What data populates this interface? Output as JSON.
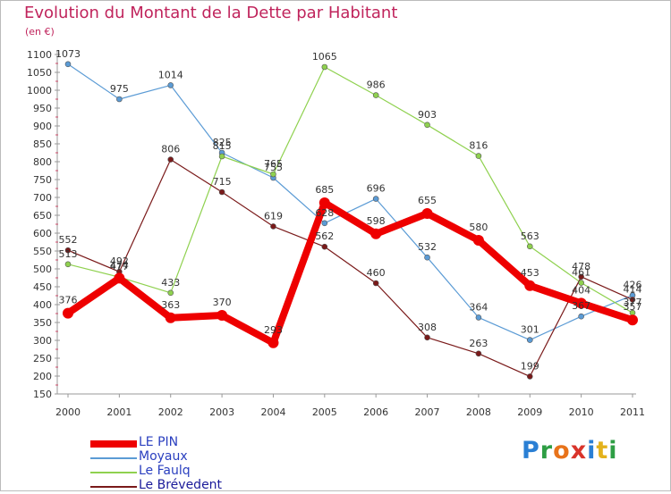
{
  "title": "Evolution du Montant de la Dette par Habitant",
  "subtitle": "(en €)",
  "brand": {
    "text": "Proxiti",
    "letter_colors": [
      "#2a7fd4",
      "#2e9e44",
      "#e8731a",
      "#d9342b",
      "#2a7fd4",
      "#e3b21c",
      "#2e9e44"
    ]
  },
  "chart_data": {
    "type": "line",
    "title": "Evolution du Montant de la Dette par Habitant",
    "ylabel": "(en €)",
    "xlabel": "",
    "categories": [
      "2000",
      "2001",
      "2002",
      "2003",
      "2004",
      "2005",
      "2006",
      "2007",
      "2008",
      "2009",
      "2010",
      "2011"
    ],
    "ylim": [
      150,
      1100
    ],
    "yticks": [
      "150",
      "200",
      "250",
      "300",
      "350",
      "400",
      "450",
      "500",
      "550",
      "600",
      "650",
      "700",
      "750",
      "800",
      "850",
      "900",
      "950",
      "1000",
      "1050",
      "1100"
    ],
    "grid": false,
    "legend": "bottom-left",
    "series": [
      {
        "name": "LE PIN",
        "color": "#ee0000",
        "values": [
          376,
          474,
          363,
          370,
          293,
          685,
          598,
          655,
          580,
          453,
          404,
          357
        ],
        "labels": [
          "376",
          "474",
          "363",
          "370",
          "293",
          "685",
          "598",
          "655",
          "580",
          "453",
          "404",
          "357"
        ]
      },
      {
        "name": "Moyaux",
        "color": "#5b9bd5",
        "values": [
          1073,
          975,
          1014,
          825,
          755,
          628,
          696,
          532,
          364,
          301,
          367,
          426
        ],
        "labels": [
          "1073",
          "975",
          "1014",
          "825",
          "755",
          "628",
          "696",
          "532",
          "364",
          "301",
          "367",
          "426"
        ]
      },
      {
        "name": "Le Faulq",
        "color": "#8fd14f",
        "values": [
          513,
          477,
          433,
          815,
          765,
          1065,
          986,
          903,
          816,
          563,
          461,
          377
        ],
        "labels": [
          "513",
          "477",
          "433",
          "815",
          "765",
          "1065",
          "986",
          "903",
          "816",
          "563",
          "461",
          "377"
        ]
      },
      {
        "name": "Le Brévedent",
        "color": "#7a1a1a",
        "values": [
          552,
          492,
          806,
          715,
          619,
          562,
          460,
          308,
          263,
          199,
          478,
          414
        ],
        "labels": [
          "552",
          "492",
          "806",
          "715",
          "619",
          "562",
          "460",
          "308",
          "263",
          "199",
          "478",
          "414"
        ]
      }
    ]
  }
}
